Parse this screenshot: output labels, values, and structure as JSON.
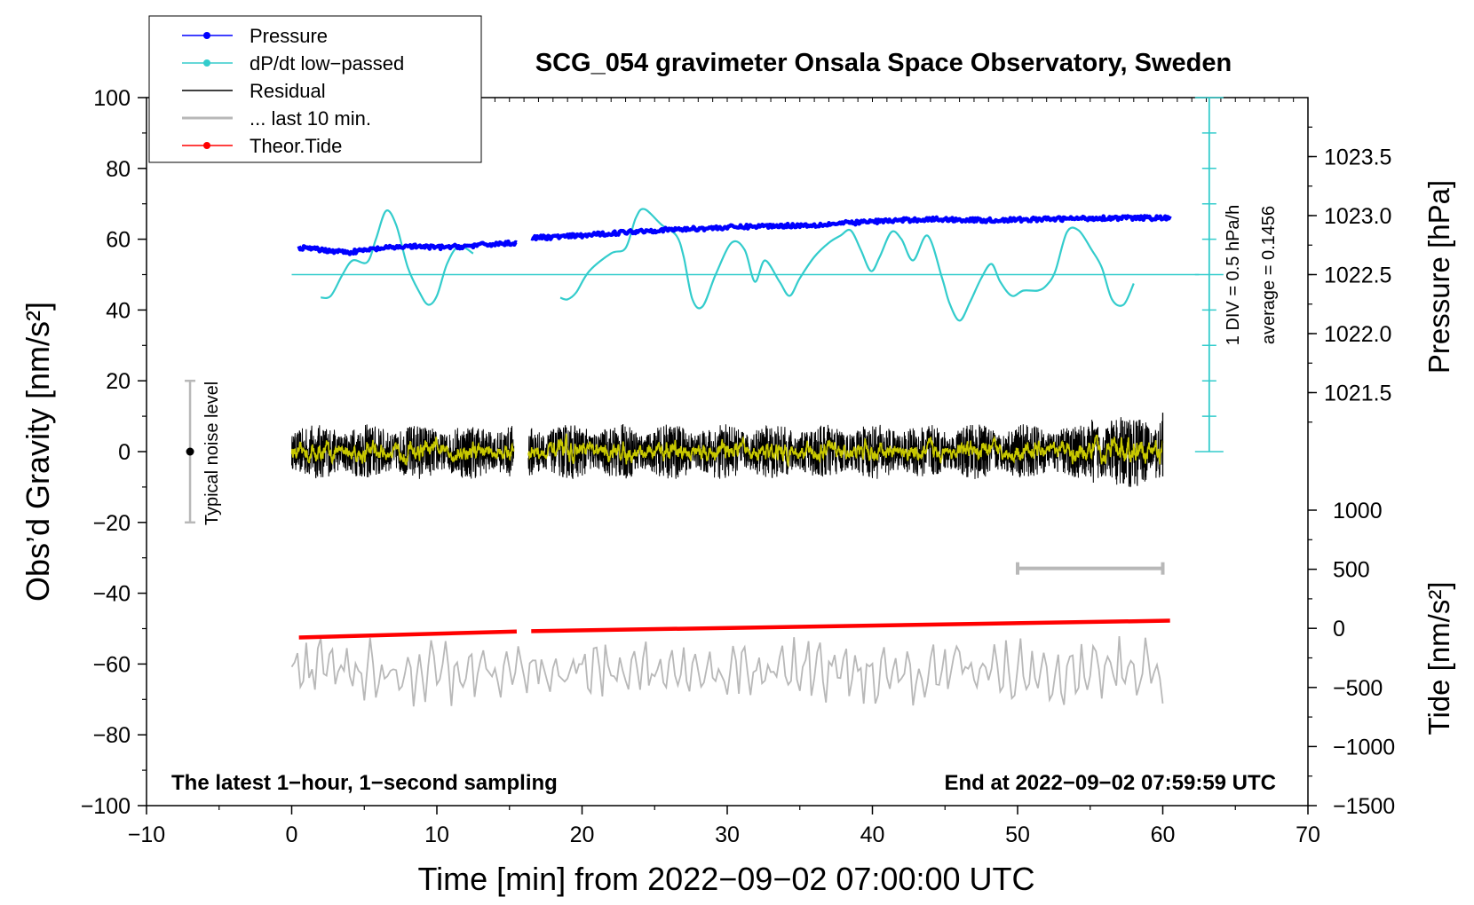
{
  "chart_data": {
    "type": "line",
    "title": "SCG_054 gravimeter Onsala Space Observatory, Sweden",
    "xlabel": "Time [min] from 2022−09−02 07:00:00 UTC",
    "ylabel_left": "Obs’d Gravity [nm/s²]",
    "ylabel_right_top": "Pressure [hPa]",
    "ylabel_right_bottom": "Tide [nm/s²]",
    "xlim": [
      -10,
      70
    ],
    "ylim": [
      -100,
      100
    ],
    "x_ticks": [
      "−10",
      "0",
      "10",
      "20",
      "30",
      "40",
      "50",
      "60",
      "70"
    ],
    "y_ticks": [
      "−100",
      "−80",
      "−60",
      "−40",
      "−20",
      "0",
      "20",
      "40",
      "60",
      "80",
      "100"
    ],
    "pressure_ticks": [
      "1021.5",
      "1022.0",
      "1022.5",
      "1023.0",
      "1023.5"
    ],
    "tide_ticks": [
      "−1500",
      "−1000",
      "−500",
      "0",
      "500",
      "1000"
    ],
    "legend": [
      {
        "label": "Pressure",
        "color": "#0000ff",
        "marker": true
      },
      {
        "label": "dP/dt low−passed",
        "color": "#33cccc",
        "marker": true
      },
      {
        "label": "Residual",
        "color": "#000000",
        "marker": false
      },
      {
        "label": "... last 10 min.",
        "color": "#b8b8b8",
        "marker": false
      },
      {
        "label": "Theor.Tide",
        "color": "#ff0000",
        "marker": true
      }
    ],
    "annotations": {
      "noise_label": "Typical noise level",
      "noise_range": [
        -20,
        20
      ],
      "div_label": "1 DIV = 0.5 hPa/h",
      "average_label": "average = 0.1456",
      "bottom_left": "The latest 1−hour, 1−second sampling",
      "bottom_right": "End at 2022−09−02 07:59:59 UTC",
      "last10_range_min": [
        50,
        60
      ]
    },
    "series": [
      {
        "name": "Pressure",
        "color": "#0000ff",
        "units": "hPa",
        "segments": [
          {
            "x": [
              0.5,
              2,
              4,
              6,
              8,
              10,
              12,
              14,
              15.5
            ],
            "y": [
              1022.73,
              1022.71,
              1022.69,
              1022.72,
              1022.74,
              1022.73,
              1022.74,
              1022.76,
              1022.77
            ]
          },
          {
            "x": [
              16.5,
              20,
              24,
              28,
              32,
              36,
              40,
              44,
              48,
              52,
              56,
              60.5
            ],
            "y": [
              1022.81,
              1022.83,
              1022.87,
              1022.89,
              1022.91,
              1022.92,
              1022.95,
              1022.97,
              1022.96,
              1022.97,
              1022.98,
              1022.98
            ]
          }
        ]
      },
      {
        "name": "dP/dt low-passed",
        "color": "#33cccc",
        "units": "gravity-axis units (baseline 50)",
        "segments": [
          {
            "x": [
              2,
              2.7,
              3.5,
              4.2,
              5.2,
              5.8,
              6.5,
              7.2,
              8,
              8.8,
              9.4,
              10,
              10.7,
              11.5,
              12.5
            ],
            "y": [
              43.5,
              44,
              50,
              54,
              53.5,
              60,
              68,
              64,
              52,
              45,
              41.5,
              44,
              53,
              58,
              56
            ]
          },
          {
            "x": [
              18.5,
              19,
              19.6,
              20.5,
              22,
              23,
              23.7,
              24.3,
              25.5,
              26.5,
              27,
              27.6,
              28.3,
              29.2,
              30.3,
              31.2,
              31.9,
              32.6,
              33.6,
              34.3,
              35,
              36,
              37,
              37.8,
              38.5,
              39.2,
              39.9,
              40.5,
              41.3,
              42,
              42.8,
              43.8,
              44.8,
              45.3,
              46,
              46.7,
              47.5,
              48.2,
              48.8,
              49.6,
              50.4,
              51.4,
              52,
              52.6,
              53.4,
              54.2,
              55.1,
              55.8,
              56.5,
              57.3,
              58
            ],
            "y": [
              43.5,
              43,
              45,
              51,
              56,
              57.5,
              66,
              68.5,
              64,
              61,
              55,
              43,
              41,
              50,
              59,
              57,
              48,
              54,
              48,
              44,
              49,
              55,
              59,
              61,
              62.5,
              57,
              51,
              55,
              62,
              60,
              54,
              61,
              49,
              42,
              37,
              42,
              49,
              53,
              48,
              44,
              45.5,
              45.5,
              47,
              51,
              62,
              62.5,
              57,
              52,
              43,
              41.5,
              47.5
            ]
          }
        ]
      },
      {
        "name": "Residual",
        "color": "#000000",
        "units": "nm/s²",
        "x_range": [
          0,
          60
        ],
        "gap": [
          15.3,
          16.3
        ],
        "amplitude": 6
      },
      {
        "name": "... last 10 min.",
        "color": "#b8b8b8",
        "units": "nm/s² (offset −62)",
        "x_range": [
          0,
          60
        ],
        "amplitude": 5
      },
      {
        "name": "Theor.Tide",
        "color": "#ff0000",
        "units": "nm/s²",
        "segments": [
          {
            "x": [
              0.5,
              15.5
            ],
            "y": [
              -77,
              -27
            ]
          },
          {
            "x": [
              16.5,
              60.5
            ],
            "y": [
              -24,
              65
            ]
          }
        ]
      }
    ]
  }
}
